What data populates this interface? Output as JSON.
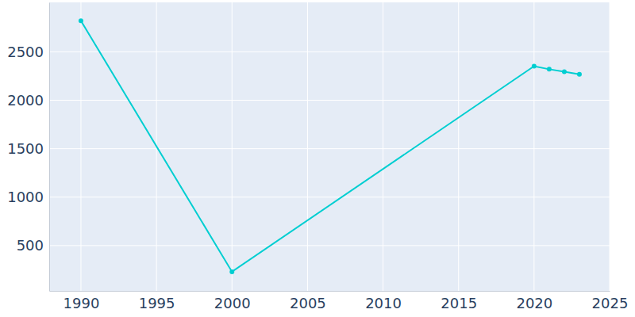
{
  "chart_data": {
    "type": "line",
    "x": [
      1990,
      2000,
      2020,
      2021,
      2022,
      2023
    ],
    "values": [
      2820,
      230,
      2352,
      2320,
      2295,
      2268
    ],
    "color": "#00ced1",
    "marker": "circle",
    "xlim": [
      1987.9,
      2025
    ],
    "xticks": [
      1990,
      1995,
      2000,
      2005,
      2010,
      2015,
      2020,
      2025
    ],
    "ylim": [
      33,
      3010
    ],
    "yticks": [
      500,
      1000,
      1500,
      2000,
      2500
    ],
    "grid": true
  }
}
